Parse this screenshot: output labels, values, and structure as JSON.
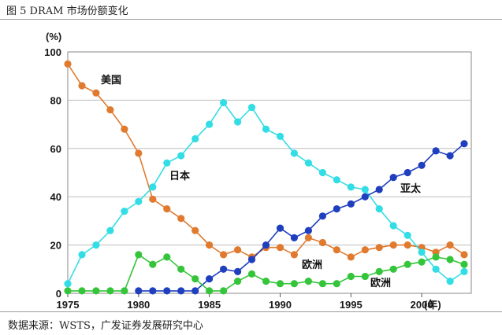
{
  "figure": {
    "title": "图 5 DRAM 市场份额变化",
    "source": "数据来源：WSTS，广发证券发展研究中心"
  },
  "chart_data": {
    "type": "line",
    "ylabel": "(%)",
    "xlabel": "(年)",
    "xlim": [
      1975,
      2003.5
    ],
    "ylim": [
      0,
      100
    ],
    "x_ticks": [
      "1975",
      "1980",
      "1985",
      "1990",
      "1995",
      "2000"
    ],
    "y_ticks": [
      "0",
      "20",
      "40",
      "60",
      "80",
      "100"
    ],
    "grid": "horizontal",
    "series": [
      {
        "name": "美国",
        "color": "#e07a2e",
        "points": [
          [
            1975,
            95
          ],
          [
            1976,
            86
          ],
          [
            1977,
            83
          ],
          [
            1978,
            76
          ],
          [
            1979,
            68
          ],
          [
            1980,
            58
          ],
          [
            1981,
            39
          ],
          [
            1982,
            35
          ],
          [
            1983,
            31
          ],
          [
            1984,
            26
          ],
          [
            1985,
            20
          ],
          [
            1986,
            16
          ],
          [
            1987,
            18
          ],
          [
            1988,
            15
          ],
          [
            1989,
            19
          ],
          [
            1990,
            19
          ],
          [
            1991,
            16
          ],
          [
            1992,
            23
          ],
          [
            1993,
            21
          ],
          [
            1994,
            18
          ],
          [
            1995,
            15
          ],
          [
            1996,
            18
          ],
          [
            1997,
            19
          ],
          [
            1998,
            20
          ],
          [
            1999,
            20
          ],
          [
            2000,
            19
          ],
          [
            2001,
            17
          ],
          [
            2002,
            20
          ],
          [
            2003,
            16
          ]
        ]
      },
      {
        "name": "日本",
        "color": "#33dde6",
        "points": [
          [
            1975,
            4
          ],
          [
            1976,
            16
          ],
          [
            1977,
            20
          ],
          [
            1978,
            26
          ],
          [
            1979,
            34
          ],
          [
            1980,
            38
          ],
          [
            1981,
            44
          ],
          [
            1982,
            54
          ],
          [
            1983,
            57
          ],
          [
            1984,
            64
          ],
          [
            1985,
            70
          ],
          [
            1986,
            79
          ],
          [
            1987,
            71
          ],
          [
            1988,
            77
          ],
          [
            1989,
            68
          ],
          [
            1990,
            65
          ],
          [
            1991,
            58
          ],
          [
            1992,
            54
          ],
          [
            1993,
            50
          ],
          [
            1994,
            47
          ],
          [
            1995,
            44
          ],
          [
            1996,
            43
          ],
          [
            1997,
            35
          ],
          [
            1998,
            28
          ],
          [
            1999,
            24
          ],
          [
            2000,
            17
          ],
          [
            2001,
            10
          ],
          [
            2002,
            5
          ],
          [
            2003,
            9
          ]
        ]
      },
      {
        "name": "亚太",
        "color": "#1f3fbf",
        "points": [
          [
            1980,
            1
          ],
          [
            1981,
            1
          ],
          [
            1982,
            1
          ],
          [
            1983,
            1
          ],
          [
            1984,
            1
          ],
          [
            1985,
            6
          ],
          [
            1986,
            10
          ],
          [
            1987,
            9
          ],
          [
            1988,
            14
          ],
          [
            1989,
            20
          ],
          [
            1990,
            27
          ],
          [
            1991,
            23
          ],
          [
            1992,
            26
          ],
          [
            1993,
            32
          ],
          [
            1994,
            35
          ],
          [
            1995,
            37
          ],
          [
            1996,
            40
          ],
          [
            1997,
            43
          ],
          [
            1998,
            48
          ],
          [
            1999,
            50
          ],
          [
            2000,
            53
          ],
          [
            2001,
            59
          ],
          [
            2002,
            57
          ],
          [
            2003,
            62
          ]
        ]
      },
      {
        "name": "欧洲",
        "color": "#35c53a",
        "points": [
          [
            1975,
            1
          ],
          [
            1976,
            1
          ],
          [
            1977,
            1
          ],
          [
            1978,
            1
          ],
          [
            1979,
            1
          ],
          [
            1980,
            16
          ],
          [
            1981,
            12
          ],
          [
            1982,
            15
          ],
          [
            1983,
            10
          ],
          [
            1984,
            6
          ],
          [
            1985,
            1
          ],
          [
            1986,
            1
          ],
          [
            1987,
            5
          ],
          [
            1988,
            8
          ],
          [
            1989,
            5
          ],
          [
            1990,
            4
          ],
          [
            1991,
            4
          ],
          [
            1992,
            5
          ],
          [
            1993,
            4
          ],
          [
            1994,
            4
          ],
          [
            1995,
            7
          ],
          [
            1996,
            7
          ],
          [
            1997,
            9
          ],
          [
            1998,
            10
          ],
          [
            1999,
            12
          ],
          [
            2000,
            13
          ],
          [
            2001,
            15
          ],
          [
            2002,
            14
          ],
          [
            2003,
            12
          ]
        ]
      }
    ],
    "annotations": [
      "美国",
      "日本",
      "亚太",
      "欧洲",
      "欧洲"
    ]
  }
}
